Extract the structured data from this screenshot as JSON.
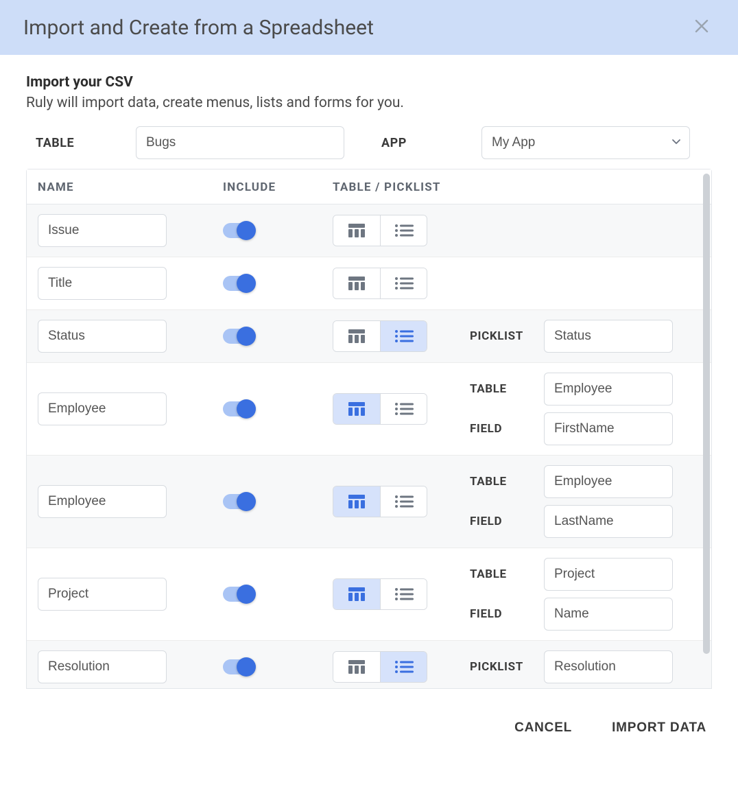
{
  "dialog": {
    "title": "Import and Create from a Spreadsheet",
    "section_title": "Import your CSV",
    "section_subtitle": "Ruly will import data, create menus, lists and forms for you.",
    "table_label": "TABLE",
    "table_value": "Bugs",
    "app_label": "APP",
    "app_value": "My App"
  },
  "columns": {
    "name": "NAME",
    "include": "INCLUDE",
    "type": "TABLE / PICKLIST"
  },
  "labels": {
    "picklist": "PICKLIST",
    "table": "TABLE",
    "field": "FIELD"
  },
  "rows": [
    {
      "name": "Issue",
      "include": true,
      "selected": "none"
    },
    {
      "name": "Title",
      "include": true,
      "selected": "none"
    },
    {
      "name": "Status",
      "include": true,
      "selected": "picklist",
      "picklist": "Status"
    },
    {
      "name": "Employee",
      "include": true,
      "selected": "table",
      "table": "Employee",
      "field": "FirstName"
    },
    {
      "name": "Employee",
      "include": true,
      "selected": "table",
      "table": "Employee",
      "field": "LastName"
    },
    {
      "name": "Project",
      "include": true,
      "selected": "table",
      "table": "Project",
      "field": "Name"
    },
    {
      "name": "Resolution",
      "include": true,
      "selected": "picklist",
      "picklist": "Resolution"
    },
    {
      "name": "",
      "include": true,
      "selected": "picklist",
      "picklist": ""
    }
  ],
  "footer": {
    "cancel": "CANCEL",
    "import": "IMPORT DATA"
  },
  "colors": {
    "header_bg": "#cdddf8",
    "accent": "#3a6fe0",
    "accent_light": "#a9c4f5",
    "seg_active_bg": "#d6e2fb",
    "border": "#d7dbe0",
    "row_alt": "#f7f8f9"
  }
}
